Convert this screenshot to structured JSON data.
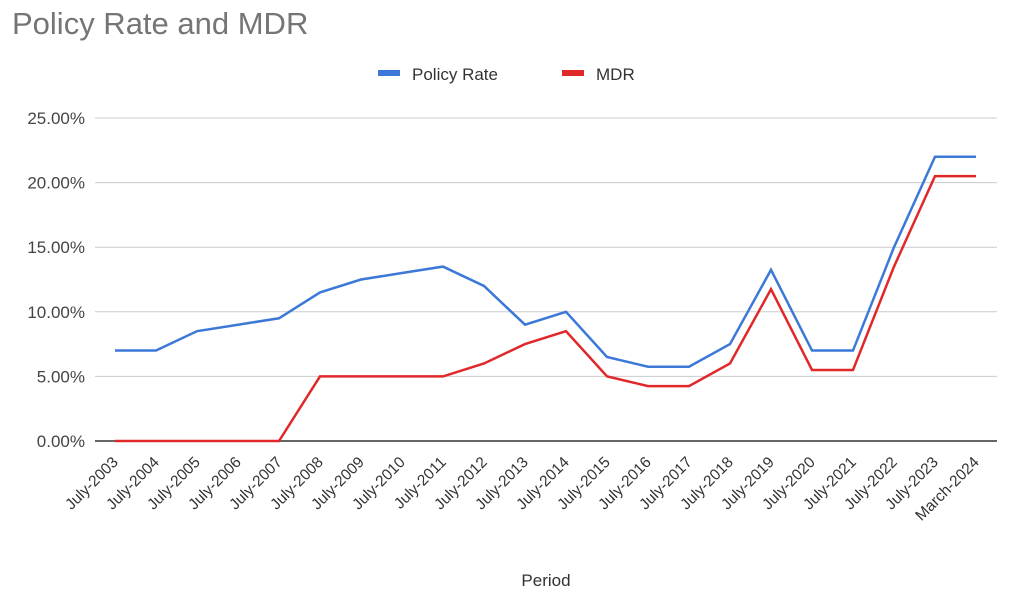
{
  "chart_data": {
    "type": "line",
    "title": "Policy Rate and MDR",
    "xlabel": "Period",
    "ylabel": "",
    "ylim": [
      0,
      25
    ],
    "yticks": [
      0,
      5,
      10,
      15,
      20,
      25
    ],
    "ytick_labels": [
      "0.00%",
      "5.00%",
      "10.00%",
      "15.00%",
      "20.00%",
      "25.00%"
    ],
    "grid": true,
    "legend_position": "top",
    "categories": [
      "July-2003",
      "July-2004",
      "July-2005",
      "July-2006",
      "July-2007",
      "July-2008",
      "July-2009",
      "July-2010",
      "July-2011",
      "July-2012",
      "July-2013",
      "July-2014",
      "July-2015",
      "July-2016",
      "July-2017",
      "July-2018",
      "July-2019",
      "July-2020",
      "July-2021",
      "July-2022",
      "July-2023",
      "March-2024"
    ],
    "series": [
      {
        "name": "Policy Rate",
        "color": "#3c78d8",
        "values": [
          7,
          7,
          8.5,
          9,
          9.5,
          11.5,
          12.5,
          13,
          13.5,
          12,
          9,
          10,
          6.5,
          5.75,
          5.75,
          7.5,
          13.25,
          7,
          7,
          15,
          22,
          22
        ]
      },
      {
        "name": "MDR",
        "color": "#e0282a",
        "values": [
          0,
          0,
          0,
          0,
          0,
          5,
          5,
          5,
          5,
          6,
          7.5,
          8.5,
          5,
          4.25,
          4.25,
          6,
          11.75,
          5.5,
          5.5,
          13.5,
          20.5,
          20.5
        ]
      }
    ]
  }
}
